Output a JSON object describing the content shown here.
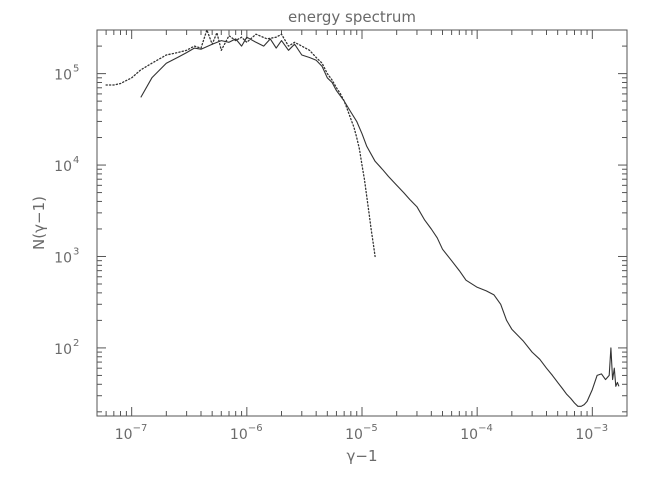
{
  "chart_data": {
    "type": "line",
    "title": "energy spectrum",
    "xlabel": "γ−1",
    "ylabel": "N(γ−1)",
    "xscale": "log",
    "yscale": "log",
    "xlim": [
      5e-08,
      0.002
    ],
    "ylim": [
      18,
      300000
    ],
    "grid": false,
    "legend": "none",
    "x_ticks": [
      {
        "base": "10",
        "exp": "−7",
        "value": 1e-07
      },
      {
        "base": "10",
        "exp": "−6",
        "value": 1e-06
      },
      {
        "base": "10",
        "exp": "−5",
        "value": 1e-05
      },
      {
        "base": "10",
        "exp": "−4",
        "value": 0.0001
      },
      {
        "base": "10",
        "exp": "−3",
        "value": 0.001
      }
    ],
    "y_ticks": [
      {
        "base": "10",
        "exp": "2",
        "value": 100
      },
      {
        "base": "10",
        "exp": "3",
        "value": 1000
      },
      {
        "base": "10",
        "exp": "4",
        "value": 10000
      },
      {
        "base": "10",
        "exp": "5",
        "value": 100000
      }
    ],
    "series": [
      {
        "style": "solid",
        "color": "#333333",
        "x": [
          1.2e-07,
          1.5e-07,
          2e-07,
          2.5e-07,
          3e-07,
          3.5e-07,
          4e-07,
          5e-07,
          6e-07,
          7e-07,
          8e-07,
          9e-07,
          1e-06,
          1.2e-06,
          1.4e-06,
          1.6e-06,
          1.8e-06,
          2e-06,
          2.3e-06,
          2.6e-06,
          3e-06,
          3.5e-06,
          4e-06,
          4.5e-06,
          5e-06,
          5.5e-06,
          6e-06,
          7e-06,
          8e-06,
          9e-06,
          1e-05,
          1.1e-05,
          1.3e-05,
          1.5e-05,
          1.7e-05,
          2e-05,
          2.3e-05,
          2.6e-05,
          3e-05,
          3.5e-05,
          4e-05,
          4.5e-05,
          5e-05,
          6e-05,
          7e-05,
          8e-05,
          0.0001,
          0.00012,
          0.00014,
          0.00016,
          0.00018,
          0.0002,
          0.00025,
          0.0003,
          0.00035,
          0.0004,
          0.00045,
          0.0005,
          0.00055,
          0.0006,
          0.00065,
          0.0007,
          0.00075,
          0.0008,
          0.00085,
          0.0009,
          0.001,
          0.0011,
          0.0012,
          0.0013,
          0.0014,
          0.00145,
          0.0015,
          0.00155,
          0.0016,
          0.00165,
          0.0017
        ],
        "y": [
          55000,
          90000,
          130000,
          150000,
          170000,
          190000,
          185000,
          210000,
          230000,
          220000,
          240000,
          200000,
          250000,
          220000,
          200000,
          240000,
          190000,
          230000,
          180000,
          210000,
          160000,
          150000,
          140000,
          120000,
          90000,
          80000,
          65000,
          50000,
          38000,
          30000,
          22000,
          16000,
          11000,
          9000,
          7500,
          6000,
          5000,
          4200,
          3500,
          2500,
          2000,
          1600,
          1200,
          900,
          700,
          550,
          460,
          420,
          380,
          300,
          200,
          160,
          120,
          90,
          75,
          60,
          50,
          42,
          36,
          31,
          28,
          25,
          23,
          23,
          24,
          26,
          35,
          50,
          52,
          45,
          50,
          100,
          45,
          60,
          38,
          42,
          38
        ]
      },
      {
        "style": "dotted",
        "color": "#333333",
        "x": [
          6e-08,
          7e-08,
          8e-08,
          1e-07,
          1.2e-07,
          1.5e-07,
          2e-07,
          2.5e-07,
          3e-07,
          3.5e-07,
          4e-07,
          4.5e-07,
          5e-07,
          5.5e-07,
          6e-07,
          7e-07,
          8e-07,
          9e-07,
          1e-06,
          1.2e-06,
          1.5e-06,
          1.8e-06,
          2e-06,
          2.3e-06,
          2.6e-06,
          3e-06,
          3.5e-06,
          4e-06,
          4.5e-06,
          5e-06,
          5.5e-06,
          6e-06,
          6.5e-06,
          7e-06,
          7.5e-06,
          8e-06,
          8.5e-06,
          9e-06,
          9.5e-06,
          1e-05,
          1.05e-05,
          1.1e-05,
          1.15e-05,
          1.2e-05,
          1.25e-05,
          1.3e-05
        ],
        "y": [
          75000,
          75000,
          78000,
          90000,
          110000,
          130000,
          160000,
          170000,
          180000,
          200000,
          190000,
          300000,
          210000,
          280000,
          180000,
          260000,
          230000,
          250000,
          220000,
          270000,
          240000,
          250000,
          270000,
          200000,
          220000,
          200000,
          180000,
          150000,
          130000,
          100000,
          85000,
          70000,
          60000,
          50000,
          40000,
          32000,
          26000,
          20000,
          15000,
          10000,
          7000,
          4500,
          3000,
          2000,
          1400,
          1000
        ]
      }
    ]
  }
}
